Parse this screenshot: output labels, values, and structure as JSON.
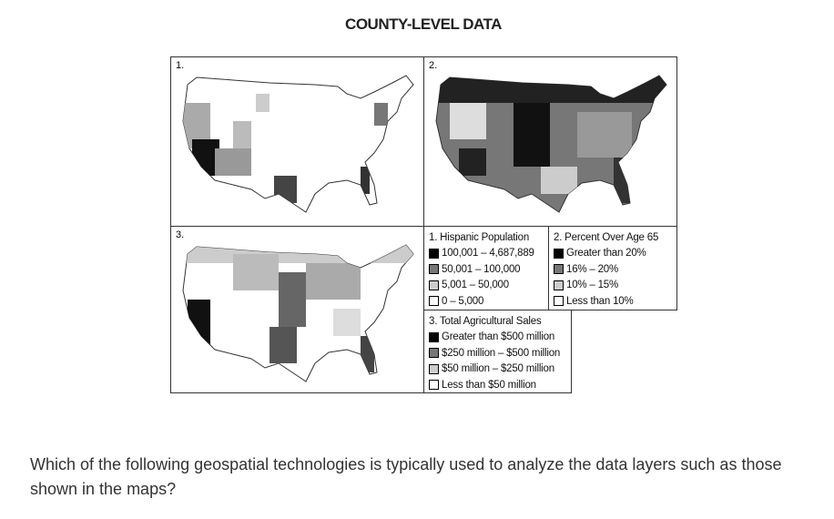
{
  "title": "COUNTY-LEVEL DATA",
  "maps": [
    {
      "label": "1."
    },
    {
      "label": "2."
    },
    {
      "label": "3."
    }
  ],
  "legends": [
    {
      "title": "1. Hispanic Population",
      "items": [
        "100,001 – 4,687,889",
        "50,001 – 100,000",
        "5,001 – 50,000",
        "0 – 5,000"
      ]
    },
    {
      "title": "2. Percent Over Age 65",
      "items": [
        "Greater than 20%",
        "16% – 20%",
        "10% – 15%",
        "Less than 10%"
      ]
    },
    {
      "title": "3. Total Agricultural Sales",
      "items": [
        "Greater than $500 million",
        "$250 million – $500 million",
        "$50 million – $250 million",
        "Less than $50 million"
      ]
    }
  ],
  "question": "Which of the following geospatial technologies is typically used to analyze the data layers such as those shown in the maps?"
}
